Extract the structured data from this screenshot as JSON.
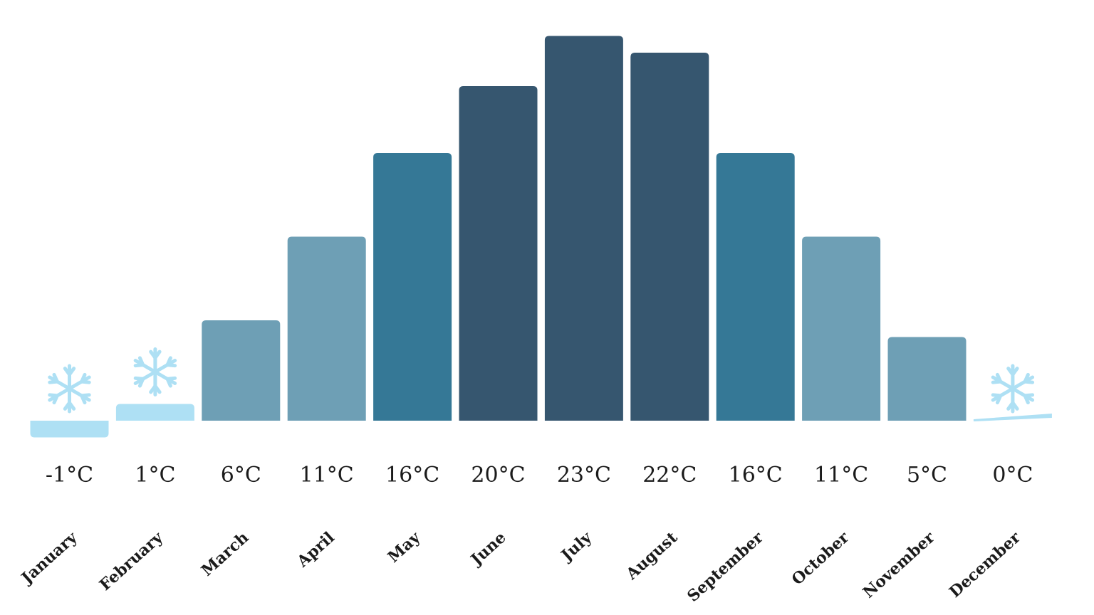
{
  "chart_data": {
    "type": "bar",
    "title": "",
    "xlabel": "",
    "ylabel": "",
    "ylim": [
      -1,
      23
    ],
    "grid": false,
    "legend": "none",
    "categories": [
      "January",
      "February",
      "March",
      "April",
      "May",
      "June",
      "July",
      "August",
      "September",
      "October",
      "November",
      "December"
    ],
    "values": [
      -1,
      1,
      6,
      11,
      16,
      20,
      23,
      22,
      16,
      11,
      5,
      0
    ],
    "value_labels": [
      "-1°C",
      "1°C",
      "6°C",
      "11°C",
      "16°C",
      "20°C",
      "23°C",
      "22°C",
      "16°C",
      "11°C",
      "5°C",
      "0°C"
    ],
    "bar_colors": [
      "#aee0f4",
      "#aee0f4",
      "#6e9fb5",
      "#6e9fb5",
      "#357896",
      "#36566f",
      "#36566f",
      "#36566f",
      "#357896",
      "#6e9fb5",
      "#6e9fb5",
      "#aee0f4"
    ],
    "snowflake_months": [
      "January",
      "February",
      "December"
    ],
    "snowflake_icon": "snowflake-icon",
    "snowflake_color": "#aee0f4"
  }
}
